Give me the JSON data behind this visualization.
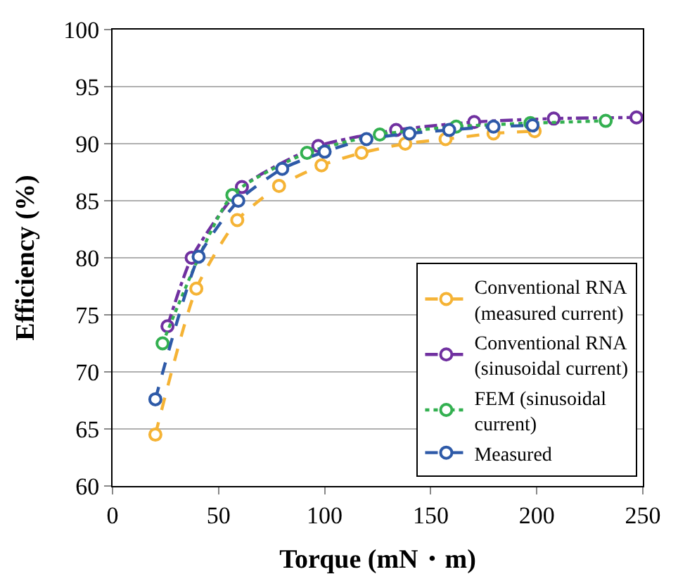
{
  "chart_data": {
    "type": "line",
    "xlabel": "Torque (mN・m)",
    "ylabel": "Efficiency (%)",
    "xlim": [
      0,
      250
    ],
    "xticks": [
      0,
      50,
      100,
      150,
      200,
      250
    ],
    "ylim": [
      60,
      100
    ],
    "yticks": [
      60,
      65,
      70,
      75,
      80,
      85,
      90,
      95,
      100
    ],
    "grid": "y",
    "legend": "bottom right",
    "marker": "circle",
    "series": [
      {
        "name": "Conventional RNA (measured current)",
        "color": "#f5b335",
        "line_style": "dashed",
        "x": [
          20.2,
          39.5,
          58.8,
          78.5,
          98.5,
          117.4,
          138,
          157,
          179.6,
          199
        ],
        "values": [
          64.5,
          77.3,
          83.3,
          86.3,
          88.1,
          89.2,
          90.0,
          90.4,
          90.9,
          91.1
        ]
      },
      {
        "name": "Conventional RNA (sinusoidal current)",
        "color": "#7030a0",
        "line_style": "dashdot",
        "x": [
          25.9,
          37.3,
          61,
          97,
          133.7,
          170.5,
          208,
          247
        ],
        "values": [
          74.0,
          80.0,
          86.2,
          89.8,
          91.2,
          91.9,
          92.2,
          92.3
        ]
      },
      {
        "name": "FEM (sinusoidal current)",
        "color": "#33b050",
        "line_style": "dotted",
        "x": [
          23.6,
          56.5,
          91.7,
          126,
          162,
          197,
          232.5
        ],
        "values": [
          72.5,
          85.5,
          89.2,
          90.8,
          91.5,
          91.8,
          92.0
        ]
      },
      {
        "name": "Measured",
        "color": "#2e5aa8",
        "line_style": "dashed",
        "x": [
          20.2,
          40.6,
          59.3,
          80,
          100,
          119.7,
          140,
          158.7,
          179.6,
          198
        ],
        "values": [
          67.6,
          80.1,
          85.0,
          87.8,
          89.3,
          90.4,
          90.9,
          91.2,
          91.5,
          91.6
        ]
      }
    ]
  }
}
